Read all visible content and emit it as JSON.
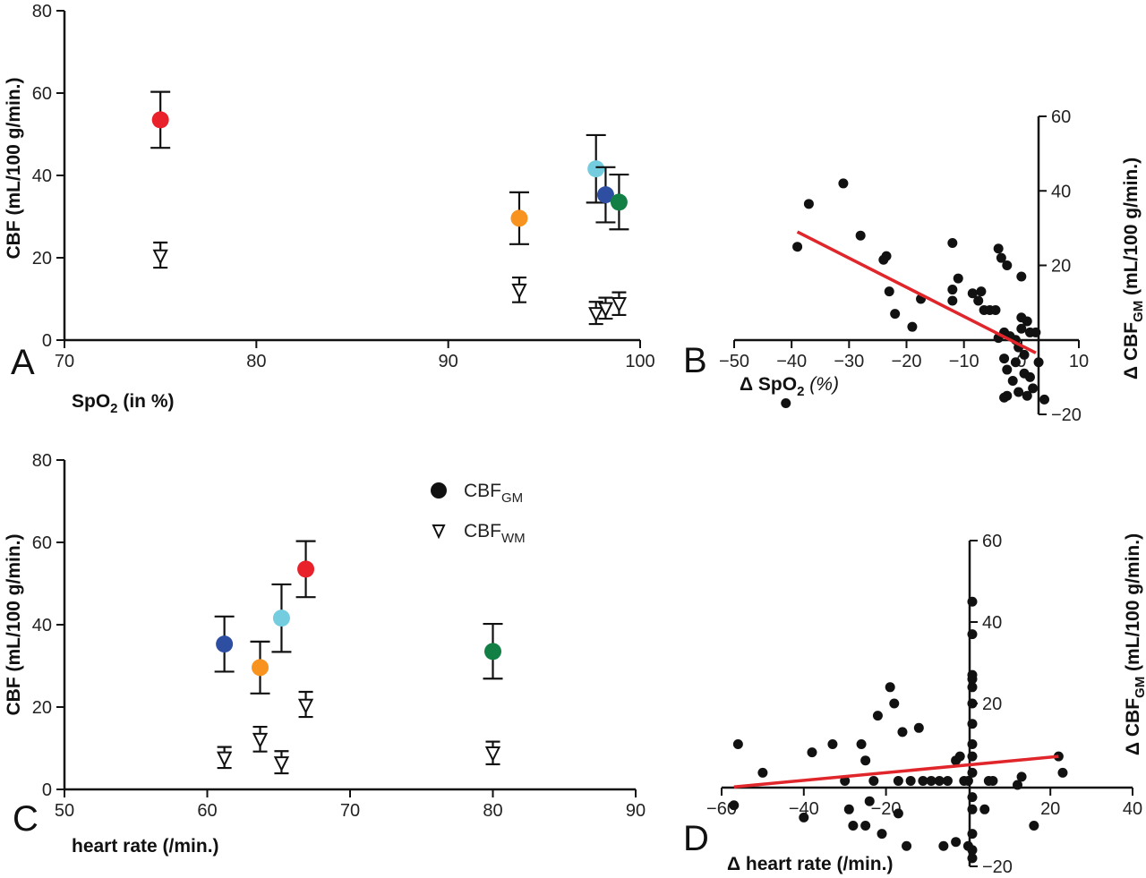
{
  "colors": {
    "red": "#e8212b",
    "orange": "#f7931e",
    "lightblue": "#74ccdf",
    "blue": "#2e4ea1",
    "green": "#128045",
    "regression": "#e0262b"
  },
  "legend": {
    "gm_base": "CBF",
    "gm_sub": "GM",
    "wm_base": "CBF",
    "wm_sub": "WM"
  },
  "chart_data": [
    {
      "panel": "A",
      "type": "scatter",
      "xlabel_main": "SpO",
      "xlabel_sub": "2",
      "xlabel_rest": " (in %)",
      "ylabel": "CBF (mL/100 g/min.)",
      "xlim": [
        70,
        100
      ],
      "ylim": [
        0,
        80
      ],
      "xticks": [
        "70",
        "80",
        "90",
        "100"
      ],
      "yticks": [
        "0",
        "20",
        "40",
        "60",
        "80"
      ],
      "series": [
        {
          "name": "CBFGM",
          "marker": "circle",
          "points": [
            {
              "x": 75.0,
              "y": 53.5,
              "err": [
                46.7,
                60.3
              ],
              "color": "red"
            },
            {
              "x": 93.7,
              "y": 29.6,
              "err": [
                23.3,
                35.9
              ],
              "color": "orange"
            },
            {
              "x": 97.7,
              "y": 41.6,
              "err": [
                33.4,
                49.8
              ],
              "color": "lightblue"
            },
            {
              "x": 98.2,
              "y": 35.3,
              "err": [
                28.6,
                42.0
              ],
              "color": "blue"
            },
            {
              "x": 98.9,
              "y": 33.5,
              "err": [
                26.9,
                40.2
              ],
              "color": "green"
            }
          ]
        },
        {
          "name": "CBFWM",
          "marker": "triangle-down",
          "points": [
            {
              "x": 75.0,
              "y": 20.5,
              "err": [
                17.6,
                23.7
              ]
            },
            {
              "x": 93.7,
              "y": 12.2,
              "err": [
                9.2,
                15.2
              ]
            },
            {
              "x": 97.7,
              "y": 6.5,
              "err": [
                3.9,
                9.3
              ]
            },
            {
              "x": 98.2,
              "y": 7.7,
              "err": [
                5.2,
                10.3
              ]
            },
            {
              "x": 98.9,
              "y": 8.9,
              "err": [
                6.1,
                11.6
              ]
            }
          ]
        }
      ]
    },
    {
      "panel": "B",
      "type": "scatter",
      "xlabel_main": "Δ SpO",
      "xlabel_sub": "2",
      "xlabel_rest": " (%)",
      "ylabel_main": "Δ CBF",
      "ylabel_sub": "GM",
      "ylabel_rest": " (mL/100 g/min.)",
      "xlim": [
        -50,
        10
      ],
      "ylim": [
        -20,
        60
      ],
      "xticks": [
        "−50",
        "−40",
        "−30",
        "−20",
        "−10",
        "0",
        "10"
      ],
      "yticks": [
        "−20",
        "20",
        "40",
        "60"
      ],
      "regression": {
        "x1": -39,
        "y1": 29,
        "x2": 2.5,
        "y2": -3.5
      },
      "points": [
        [
          -39,
          25
        ],
        [
          -37,
          36.5
        ],
        [
          -31,
          42
        ],
        [
          -28,
          28
        ],
        [
          -24,
          21.5
        ],
        [
          -23.5,
          22.5
        ],
        [
          -23,
          13
        ],
        [
          -22,
          7
        ],
        [
          -19,
          3.5
        ],
        [
          -17.5,
          11
        ],
        [
          -12,
          26
        ],
        [
          -12,
          13.5
        ],
        [
          -12,
          10.5
        ],
        [
          -11,
          16.5
        ],
        [
          -8.5,
          12.5
        ],
        [
          -7.5,
          10.5
        ],
        [
          -7,
          13
        ],
        [
          -6.5,
          8
        ],
        [
          -5.5,
          8
        ],
        [
          -4.5,
          8
        ],
        [
          -4,
          24.5
        ],
        [
          -3.5,
          22
        ],
        [
          -2.5,
          20
        ],
        [
          -4,
          0.5
        ],
        [
          -3,
          2
        ],
        [
          -2,
          1
        ],
        [
          -1,
          0
        ],
        [
          0,
          6
        ],
        [
          0,
          3
        ],
        [
          -0.5,
          -2
        ],
        [
          1,
          5
        ],
        [
          1.5,
          2
        ],
        [
          -3,
          -5
        ],
        [
          -2.5,
          -8
        ],
        [
          -1.5,
          -11
        ],
        [
          -0.5,
          -14
        ],
        [
          0.5,
          -9
        ],
        [
          1,
          -15
        ],
        [
          -1,
          -6
        ],
        [
          0.5,
          -4
        ],
        [
          1.5,
          -10
        ],
        [
          2,
          -13
        ],
        [
          3,
          -6
        ],
        [
          4,
          -16
        ],
        [
          -2.5,
          -15
        ],
        [
          -3,
          -15.5
        ],
        [
          2.5,
          2
        ],
        [
          0,
          17
        ],
        [
          -41,
          -17
        ]
      ]
    },
    {
      "panel": "C",
      "type": "scatter",
      "xlabel": "heart rate (/min.)",
      "ylabel": "CBF (mL/100 g/min.)",
      "xlim": [
        50,
        90
      ],
      "ylim": [
        0,
        80
      ],
      "xticks": [
        "50",
        "60",
        "70",
        "80",
        "90"
      ],
      "yticks": [
        "0",
        "20",
        "40",
        "60",
        "80"
      ],
      "series": [
        {
          "name": "CBFGM",
          "marker": "circle",
          "points": [
            {
              "x": 61.2,
              "y": 35.3,
              "err": [
                28.6,
                42.0
              ],
              "color": "blue"
            },
            {
              "x": 63.7,
              "y": 29.6,
              "err": [
                23.3,
                35.9
              ],
              "color": "orange"
            },
            {
              "x": 65.2,
              "y": 41.6,
              "err": [
                33.4,
                49.8
              ],
              "color": "lightblue"
            },
            {
              "x": 66.9,
              "y": 53.5,
              "err": [
                46.7,
                60.3
              ],
              "color": "red"
            },
            {
              "x": 80.0,
              "y": 33.5,
              "err": [
                26.9,
                40.2
              ],
              "color": "green"
            }
          ]
        },
        {
          "name": "CBFWM",
          "marker": "triangle-down",
          "points": [
            {
              "x": 61.2,
              "y": 7.7,
              "err": [
                5.2,
                10.3
              ]
            },
            {
              "x": 63.7,
              "y": 12.2,
              "err": [
                9.2,
                15.2
              ]
            },
            {
              "x": 65.2,
              "y": 6.5,
              "err": [
                3.9,
                9.3
              ]
            },
            {
              "x": 66.9,
              "y": 20.5,
              "err": [
                17.6,
                23.7
              ]
            },
            {
              "x": 80.0,
              "y": 8.9,
              "err": [
                6.1,
                11.6
              ]
            }
          ]
        }
      ]
    },
    {
      "panel": "D",
      "type": "scatter",
      "xlabel": "Δ heart rate (/min.)",
      "ylabel_main": "Δ CBF",
      "ylabel_sub": "GM",
      "ylabel_rest": " (mL/100 g/min.)",
      "xlim": [
        -60,
        40
      ],
      "ylim": [
        -20,
        60
      ],
      "xticks": [
        "−60",
        "−40",
        "−20",
        "20",
        "40"
      ],
      "yticks": [
        "−20",
        "20",
        "40",
        "60"
      ],
      "regression": {
        "x1": -57,
        "y1": -0.5,
        "x2": 22,
        "y2": 7
      },
      "points": [
        [
          -56,
          10
        ],
        [
          -57,
          -5
        ],
        [
          -50,
          3
        ],
        [
          -40,
          -8
        ],
        [
          -38,
          8
        ],
        [
          -33,
          10
        ],
        [
          -30,
          1
        ],
        [
          -29,
          -6
        ],
        [
          -28,
          -10
        ],
        [
          -26,
          10
        ],
        [
          -25,
          6
        ],
        [
          -25,
          -10
        ],
        [
          -24,
          -4
        ],
        [
          -23,
          1
        ],
        [
          -22,
          17
        ],
        [
          -21,
          -12
        ],
        [
          -19,
          24
        ],
        [
          -18,
          20
        ],
        [
          -17,
          -7
        ],
        [
          -17,
          1
        ],
        [
          -16,
          13
        ],
        [
          -15,
          -15
        ],
        [
          -14,
          1
        ],
        [
          -12,
          14
        ],
        [
          -11,
          1
        ],
        [
          -9,
          1
        ],
        [
          -7,
          1
        ],
        [
          -5,
          1
        ],
        [
          -3,
          6
        ],
        [
          -2,
          7
        ],
        [
          -1,
          1
        ],
        [
          0,
          1
        ],
        [
          0,
          -15
        ],
        [
          -6,
          -15
        ],
        [
          1,
          -18
        ],
        [
          1,
          -16
        ],
        [
          1,
          -12
        ],
        [
          1,
          -6
        ],
        [
          1,
          -3
        ],
        [
          1,
          3
        ],
        [
          1,
          7
        ],
        [
          1,
          10
        ],
        [
          1,
          15
        ],
        [
          1,
          20
        ],
        [
          1,
          24
        ],
        [
          1,
          26
        ],
        [
          1,
          27
        ],
        [
          1,
          37
        ],
        [
          1,
          45
        ],
        [
          4,
          -6
        ],
        [
          5,
          1
        ],
        [
          6,
          1
        ],
        [
          12,
          0
        ],
        [
          13,
          2
        ],
        [
          16,
          -10
        ],
        [
          22,
          7
        ],
        [
          23,
          3
        ],
        [
          -3,
          -14
        ]
      ]
    }
  ],
  "panel_letters": [
    "A",
    "B",
    "C",
    "D"
  ]
}
